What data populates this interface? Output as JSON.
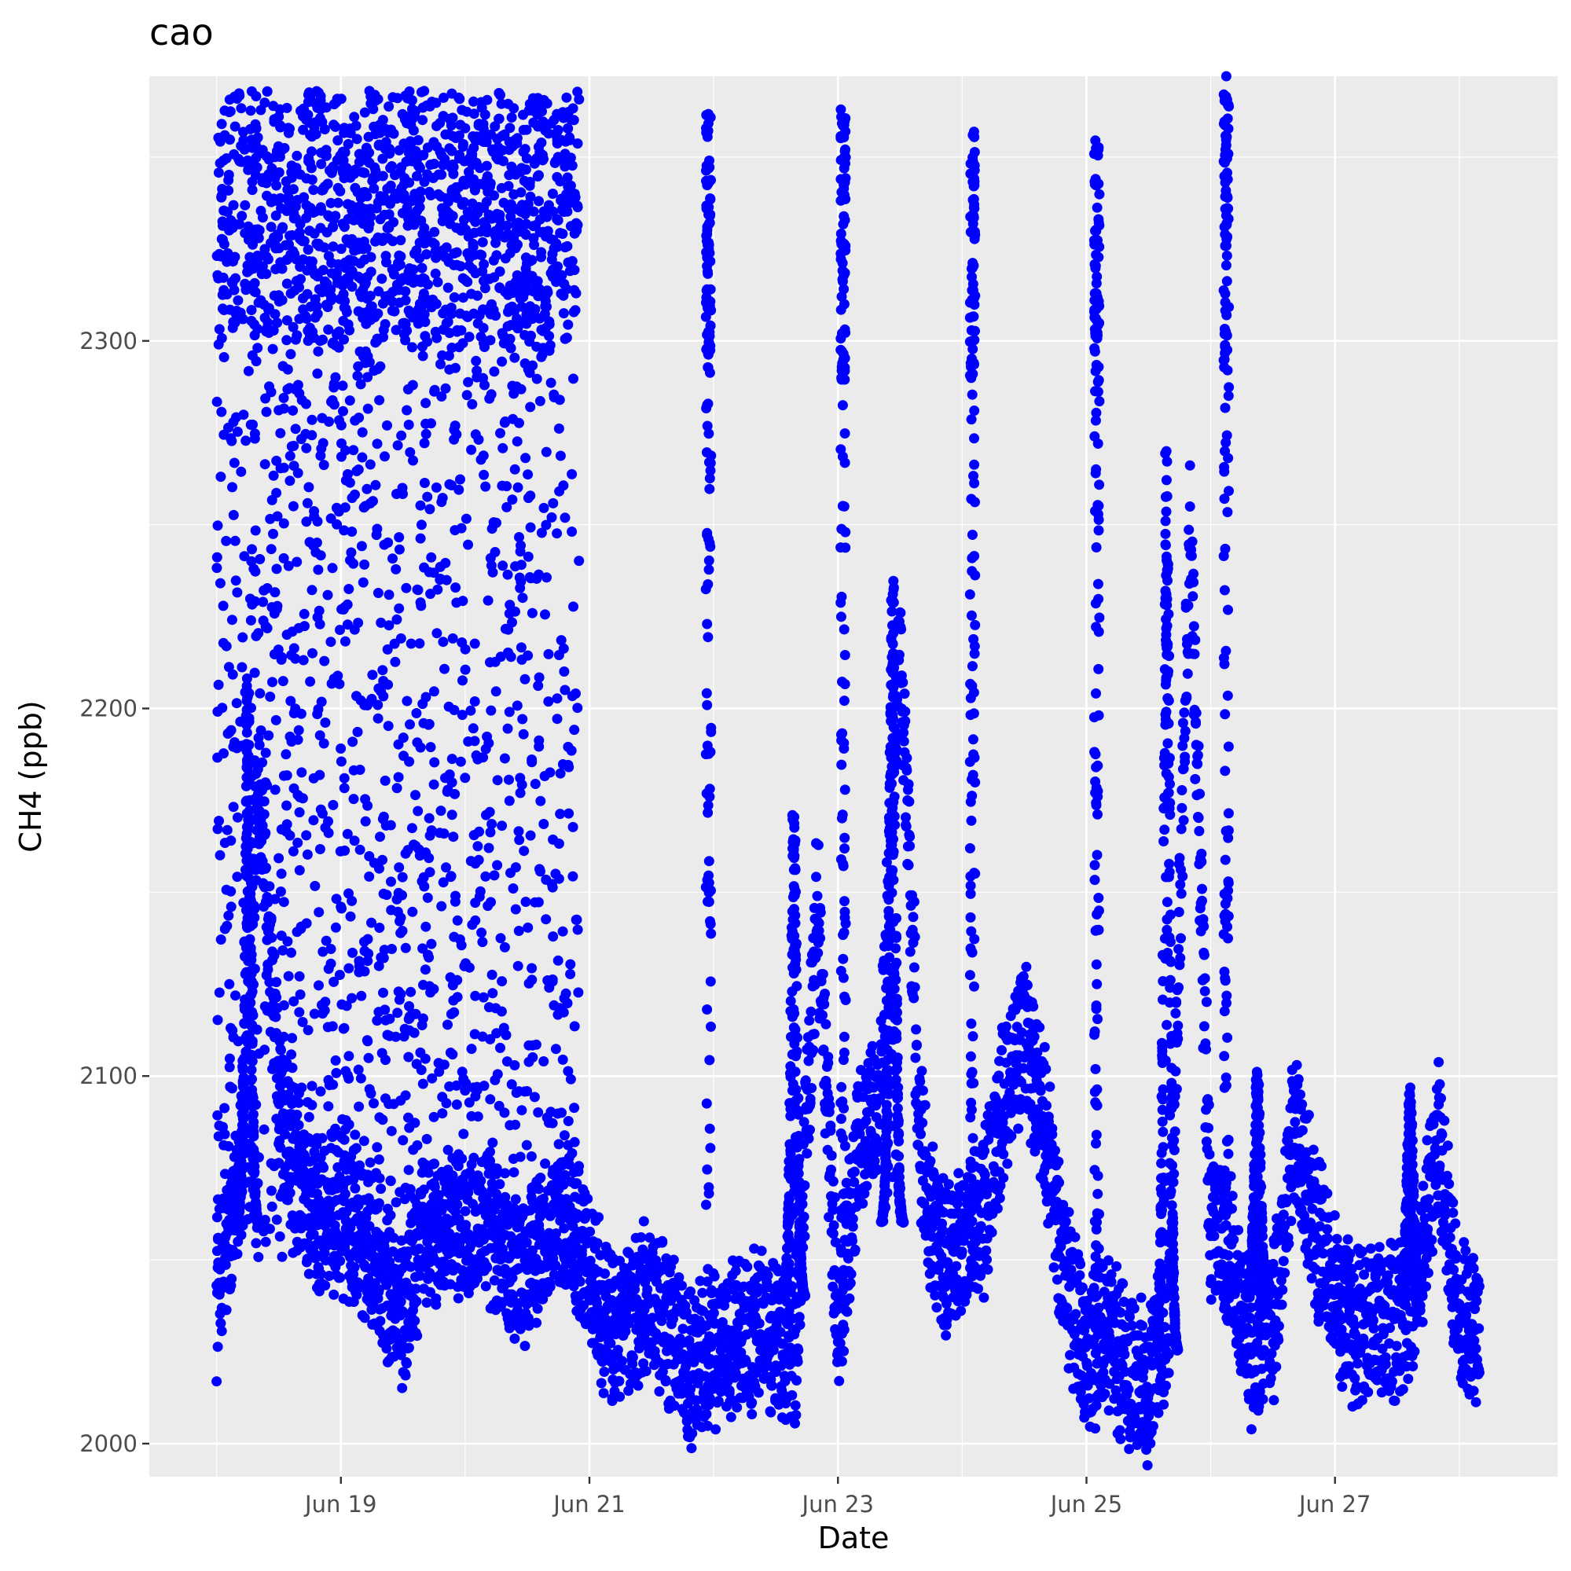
{
  "chart_data": {
    "type": "scatter",
    "title": "cao",
    "xlabel": "Date",
    "ylabel": "CH4 (ppb)",
    "point_color": "#0000ff",
    "panel_background": "#ebebeb",
    "grid_color": "#ffffff",
    "grid": true,
    "legend": "none",
    "x_is_date": true,
    "xlim": [
      "2021-06-17T11:00",
      "2021-06-28T19:00"
    ],
    "ylim": [
      1991,
      2372
    ],
    "x_ticks": [
      {
        "value": "2021-06-19T00:00",
        "label": "Jun 19"
      },
      {
        "value": "2021-06-21T00:00",
        "label": "Jun 21"
      },
      {
        "value": "2021-06-23T00:00",
        "label": "Jun 23"
      },
      {
        "value": "2021-06-25T00:00",
        "label": "Jun 25"
      },
      {
        "value": "2021-06-27T00:00",
        "label": "Jun 27"
      }
    ],
    "x_minor_ticks": [
      "2021-06-18T00:00",
      "2021-06-20T00:00",
      "2021-06-22T00:00",
      "2021-06-24T00:00",
      "2021-06-26T00:00",
      "2021-06-28T00:00"
    ],
    "y_ticks": [
      2000,
      2100,
      2200,
      2300
    ],
    "series": [
      {
        "x": [
          "2021-06-18T00:00",
          "2021-06-18T04:00",
          "2021-06-18T08:00",
          "2021-06-18T12:00",
          "2021-06-18T16:00",
          "2021-06-18T20:00",
          "2021-06-19T00:00",
          "2021-06-19T04:00",
          "2021-06-19T08:00",
          "2021-06-19T12:00",
          "2021-06-19T16:00",
          "2021-06-19T20:00",
          "2021-06-20T00:00",
          "2021-06-20T04:00",
          "2021-06-20T08:00",
          "2021-06-20T12:00",
          "2021-06-20T16:00",
          "2021-06-20T20:00",
          "2021-06-21T00:00",
          "2021-06-21T04:00",
          "2021-06-21T08:00",
          "2021-06-21T12:00",
          "2021-06-21T16:00",
          "2021-06-21T20:00",
          "2021-06-22T00:00",
          "2021-06-22T04:00",
          "2021-06-22T08:00",
          "2021-06-22T12:00",
          "2021-06-22T16:00",
          "2021-06-22T20:00",
          "2021-06-23T00:00",
          "2021-06-23T04:00",
          "2021-06-23T08:00",
          "2021-06-23T12:00",
          "2021-06-23T16:00",
          "2021-06-23T20:00",
          "2021-06-24T00:00",
          "2021-06-24T04:00",
          "2021-06-24T08:00",
          "2021-06-24T12:00",
          "2021-06-24T16:00",
          "2021-06-24T20:00",
          "2021-06-25T00:00",
          "2021-06-25T04:00",
          "2021-06-25T08:00",
          "2021-06-25T12:00",
          "2021-06-25T16:00",
          "2021-06-25T20:00",
          "2021-06-26T00:00",
          "2021-06-26T04:00",
          "2021-06-26T08:00",
          "2021-06-26T12:00",
          "2021-06-26T16:00",
          "2021-06-26T20:00",
          "2021-06-27T00:00",
          "2021-06-27T04:00",
          "2021-06-27T08:00",
          "2021-06-27T12:00",
          "2021-06-27T16:00",
          "2021-06-27T20:00",
          "2021-06-28T00:00",
          "2021-06-28T04:00"
        ],
        "y": [
          2040,
          2065,
          2180,
          2095,
          2070,
          2060,
          2062,
          2058,
          2045,
          2035,
          2060,
          2055,
          2062,
          2060,
          2050,
          2048,
          2058,
          2062,
          2048,
          2030,
          2035,
          2040,
          2030,
          2020,
          2025,
          2030,
          2030,
          2030,
          2025,
          2150,
          2030,
          2080,
          2090,
          2220,
          2080,
          2050,
          2055,
          2060,
          2095,
          2110,
          2085,
          2045,
          2025,
          2030,
          2020,
          2015,
          2040,
          2250,
          2060,
          2050,
          2025,
          2030,
          2085,
          2060,
          2040,
          2030,
          2035,
          2030,
          2040,
          2085,
          2035,
          2030
        ]
      }
    ],
    "bands": [
      {
        "x_start": "2021-06-18T00:00",
        "x_end": "2021-06-20T22:00",
        "y_low": 2050,
        "y_high": 2368,
        "count": 2600
      },
      {
        "x_start": "2021-06-21T22:30",
        "x_end": "2021-06-21T23:30",
        "y_low": 2040,
        "y_high": 2362,
        "count": 140
      },
      {
        "x_start": "2021-06-23T00:30",
        "x_end": "2021-06-23T01:30",
        "y_low": 2035,
        "y_high": 2364,
        "count": 140
      },
      {
        "x_start": "2021-06-24T01:30",
        "x_end": "2021-06-24T02:30",
        "y_low": 2045,
        "y_high": 2359,
        "count": 140
      },
      {
        "x_start": "2021-06-25T01:30",
        "x_end": "2021-06-25T02:30",
        "y_low": 2030,
        "y_high": 2358,
        "count": 140
      },
      {
        "x_start": "2021-06-26T02:30",
        "x_end": "2021-06-26T03:30",
        "y_low": 2035,
        "y_high": 2368,
        "count": 140
      }
    ],
    "spikes": [
      {
        "x": "2021-06-18T06:00",
        "y_low": 2060,
        "y_high": 2205
      },
      {
        "x": "2021-06-22T15:30",
        "y_low": 2040,
        "y_high": 2174
      },
      {
        "x": "2021-06-23T10:30",
        "y_low": 2060,
        "y_high": 2236
      },
      {
        "x": "2021-06-25T15:30",
        "y_low": 2025,
        "y_high": 2272
      },
      {
        "x": "2021-06-26T09:00",
        "y_low": 2040,
        "y_high": 2102
      },
      {
        "x": "2021-06-27T14:30",
        "y_low": 2040,
        "y_high": 2098
      }
    ],
    "outliers": [
      {
        "x": "2021-06-26T03:00",
        "y": 2372
      }
    ]
  }
}
